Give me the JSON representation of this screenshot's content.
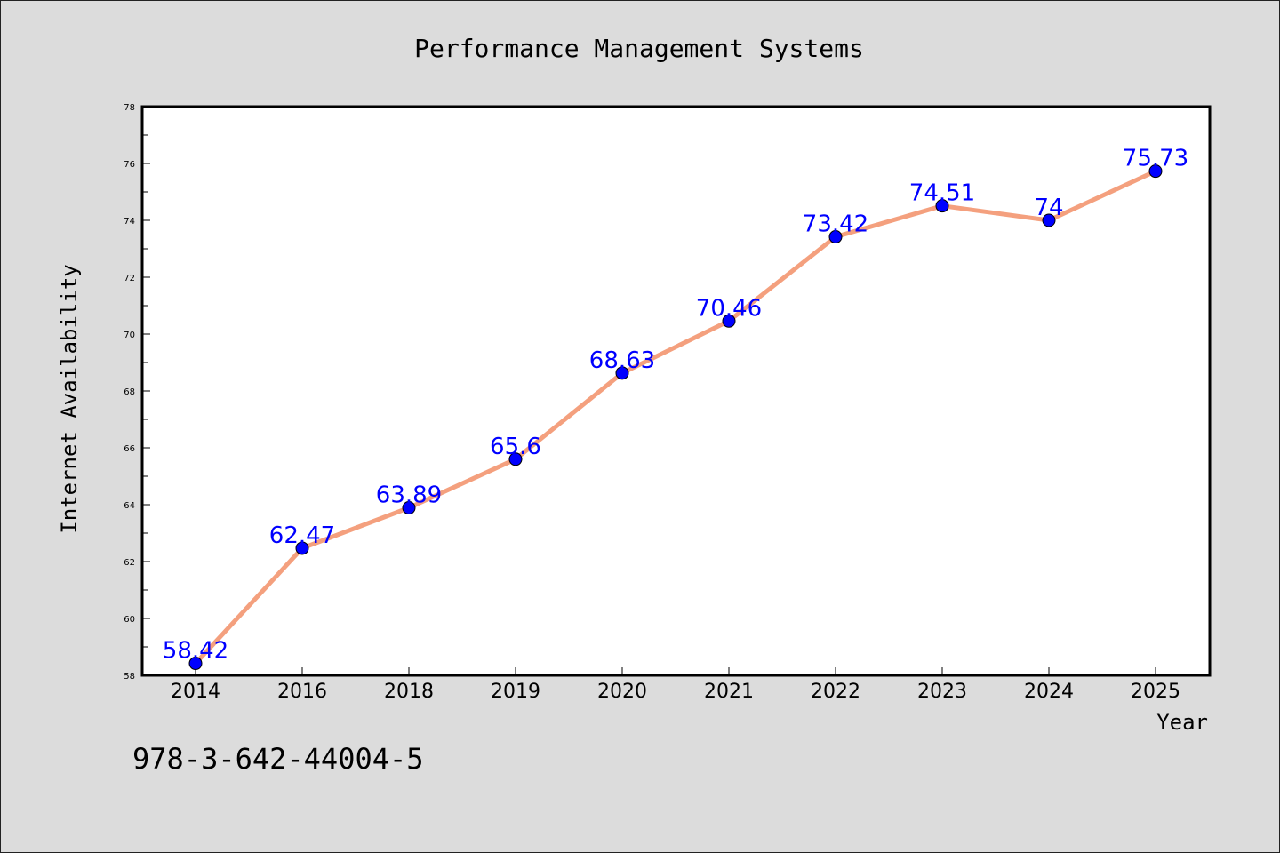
{
  "chart_data": {
    "type": "line",
    "title": "Performance Management Systems",
    "xlabel": "Year",
    "ylabel": "Internet Availability",
    "categories": [
      "2014",
      "2016",
      "2018",
      "2019",
      "2020",
      "2021",
      "2022",
      "2023",
      "2024",
      "2025"
    ],
    "series": [
      {
        "values": [
          58.42,
          62.47,
          63.89,
          65.6,
          68.63,
          70.46,
          73.42,
          74.51,
          74,
          75.73
        ],
        "data_labels": [
          "58.42",
          "62.47",
          "63.89",
          "65.6",
          "68.63",
          "70.46",
          "73.42",
          "74.51",
          "74",
          "75.73"
        ],
        "line_color": "#f4a07e",
        "marker_color": "#0000ff",
        "label_color": "#0000ff"
      }
    ],
    "ylim": [
      58,
      78
    ],
    "yticks": [
      58,
      60,
      62,
      64,
      66,
      68,
      70,
      72,
      74,
      76,
      78
    ],
    "grid": false,
    "legend": "none"
  },
  "footer_text": "978-3-642-44004-5",
  "colors": {
    "background": "#dcdcdc",
    "plot_background": "#ffffff",
    "axis": "#000000"
  }
}
